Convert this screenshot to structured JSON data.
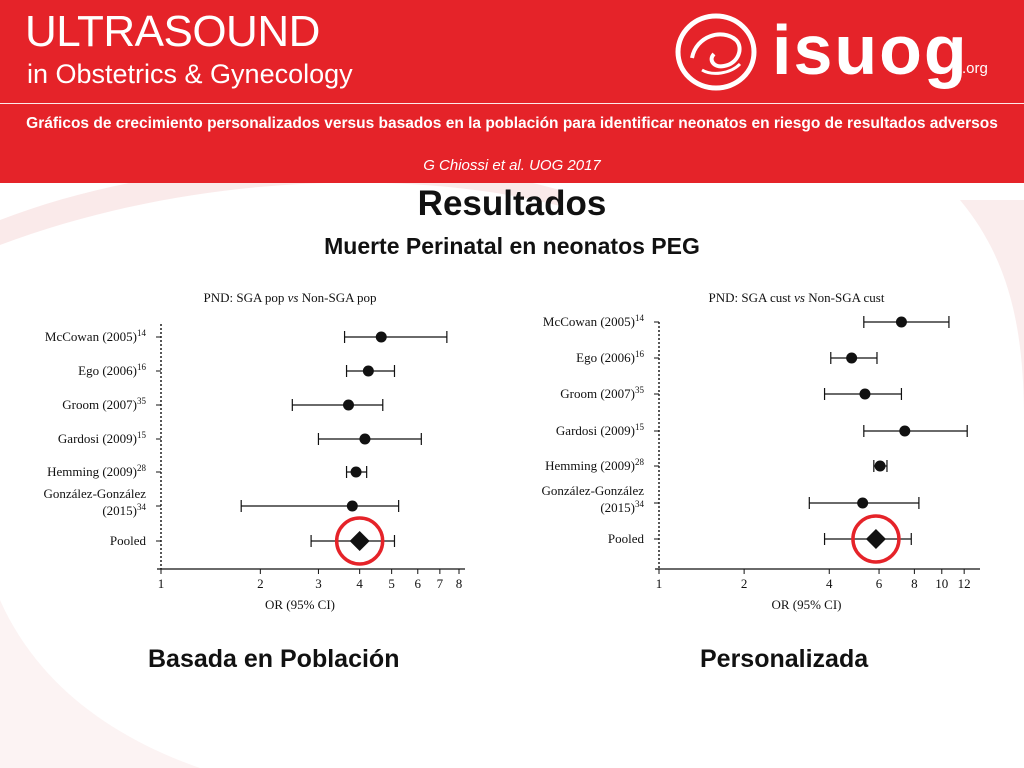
{
  "header": {
    "logo_main": "ULTRASOUND",
    "logo_sub": "in Obstetrics & Gynecology",
    "brand": "isuog",
    "brand_tld": ".org",
    "subtitle": "Gráficos de crecimiento personalizados versus basados en la población para identificar neonatos en riesgo de resultados adversos",
    "author": "G Chiossi et al. UOG 2017"
  },
  "page": {
    "title": "Resultados",
    "subhead": "Muerte Perinatal en neonatos PEG",
    "caption_left": "Basada en Población",
    "caption_right": "Personalizada"
  },
  "colors": {
    "brand_red": "#e52329",
    "highlight_circle": "#e52329",
    "ink": "#111111"
  },
  "chart_data": [
    {
      "type": "scatter",
      "title": "PND: SGA pop vs Non-SGA pop",
      "xlabel": "OR (95% CI)",
      "xscale": "log",
      "xlim": [
        1,
        8
      ],
      "xticks": [
        1,
        2,
        3,
        4,
        5,
        6,
        7,
        8
      ],
      "reference_line": 1,
      "series": [
        {
          "label": "McCowan (2005)",
          "ref": "14",
          "or": 4.65,
          "ci": [
            3.6,
            7.35
          ]
        },
        {
          "label": "Ego (2006)",
          "ref": "16",
          "or": 4.25,
          "ci": [
            3.65,
            5.1
          ]
        },
        {
          "label": "Groom (2007)",
          "ref": "35",
          "or": 3.7,
          "ci": [
            2.5,
            4.7
          ]
        },
        {
          "label": "Gardosi (2009)",
          "ref": "15",
          "or": 4.15,
          "ci": [
            3.0,
            6.15
          ]
        },
        {
          "label": "Hemming (2009)",
          "ref": "28",
          "or": 3.9,
          "ci": [
            3.65,
            4.2
          ]
        },
        {
          "label": "González-González (2015)",
          "ref": "34",
          "or": 3.8,
          "ci": [
            1.75,
            5.25
          ]
        },
        {
          "label": "Pooled",
          "ref": "",
          "or": 4.0,
          "ci": [
            2.85,
            5.1
          ],
          "pooled": true
        }
      ]
    },
    {
      "type": "scatter",
      "title": "PND: SGA cust vs Non-SGA cust",
      "xlabel": "OR (95% CI)",
      "xscale": "log",
      "xlim": [
        1,
        13
      ],
      "xticks": [
        1,
        2,
        4,
        6,
        8,
        10,
        12
      ],
      "reference_line": 1,
      "series": [
        {
          "label": "McCowan (2005)",
          "ref": "14",
          "or": 7.2,
          "ci": [
            5.3,
            10.6
          ]
        },
        {
          "label": "Ego (2006)",
          "ref": "16",
          "or": 4.8,
          "ci": [
            4.05,
            5.9
          ]
        },
        {
          "label": "Groom (2007)",
          "ref": "35",
          "or": 5.35,
          "ci": [
            3.85,
            7.2
          ]
        },
        {
          "label": "Gardosi (2009)",
          "ref": "15",
          "or": 7.4,
          "ci": [
            5.3,
            12.3
          ]
        },
        {
          "label": "Hemming (2009)",
          "ref": "28",
          "or": 6.05,
          "ci": [
            5.75,
            6.4
          ]
        },
        {
          "label": "González-González (2015)",
          "ref": "34",
          "or": 5.25,
          "ci": [
            3.4,
            8.3
          ]
        },
        {
          "label": "Pooled",
          "ref": "",
          "or": 5.85,
          "ci": [
            3.85,
            7.8
          ],
          "pooled": true
        }
      ]
    }
  ]
}
